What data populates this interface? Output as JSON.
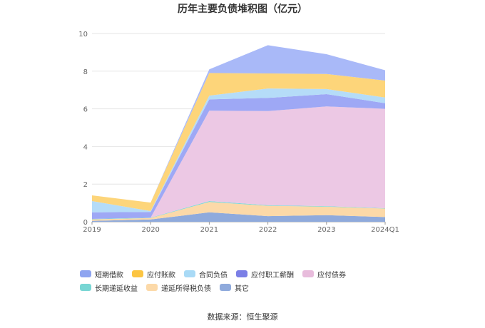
{
  "chart_data": {
    "type": "area",
    "stacked": true,
    "title": "历年主要负债堆积图（亿元）",
    "categories": [
      "2019",
      "2020",
      "2021",
      "2022",
      "2023",
      "2024Q1"
    ],
    "ylim": [
      0,
      10
    ],
    "yticks": [
      "0",
      "2",
      "4",
      "6",
      "8",
      "10"
    ],
    "grid": true,
    "legend_position": "bottom",
    "series": [
      {
        "name": "其它",
        "color": "#8faadc",
        "values": [
          0.05,
          0.12,
          0.5,
          0.3,
          0.35,
          0.25
        ]
      },
      {
        "name": "递延所得税负债",
        "color": "#fcd9a8",
        "values": [
          0.08,
          0.08,
          0.55,
          0.55,
          0.45,
          0.45
        ]
      },
      {
        "name": "长期递延收益",
        "color": "#7fd8d8",
        "values": [
          0.02,
          0.02,
          0.05,
          0.03,
          0.03,
          0.02
        ]
      },
      {
        "name": "应付债券",
        "color": "#ecc8e4",
        "values": [
          0.0,
          0.0,
          4.8,
          5.0,
          5.3,
          5.28
        ]
      },
      {
        "name": "应付职工薪酬",
        "color": "#9ea8f5",
        "values": [
          0.35,
          0.3,
          0.6,
          0.7,
          0.65,
          0.3
        ]
      },
      {
        "name": "合同负债",
        "color": "#b5dcf8",
        "values": [
          0.6,
          0.05,
          0.2,
          0.5,
          0.27,
          0.3
        ]
      },
      {
        "name": "应付账款",
        "color": "#fdd57a",
        "values": [
          0.3,
          0.45,
          1.2,
          0.8,
          0.8,
          0.9
        ]
      },
      {
        "name": "短期借款",
        "color": "#a9b9f8",
        "values": [
          0.0,
          0.0,
          0.2,
          1.5,
          1.05,
          0.55
        ]
      }
    ]
  },
  "legend_items": [
    {
      "name": "短期借款",
      "color": "#8ea4f0"
    },
    {
      "name": "应付账款",
      "color": "#fcc542"
    },
    {
      "name": "合同负债",
      "color": "#a9daf6"
    },
    {
      "name": "应付职工薪酬",
      "color": "#7b7fe6"
    },
    {
      "name": "应付债券",
      "color": "#e8bcdc"
    },
    {
      "name": "长期递延收益",
      "color": "#78d6d4"
    },
    {
      "name": "递延所得税负债",
      "color": "#fcd9a8"
    },
    {
      "name": "其它",
      "color": "#8faadc"
    }
  ],
  "source": "数据来源：恒生聚源"
}
